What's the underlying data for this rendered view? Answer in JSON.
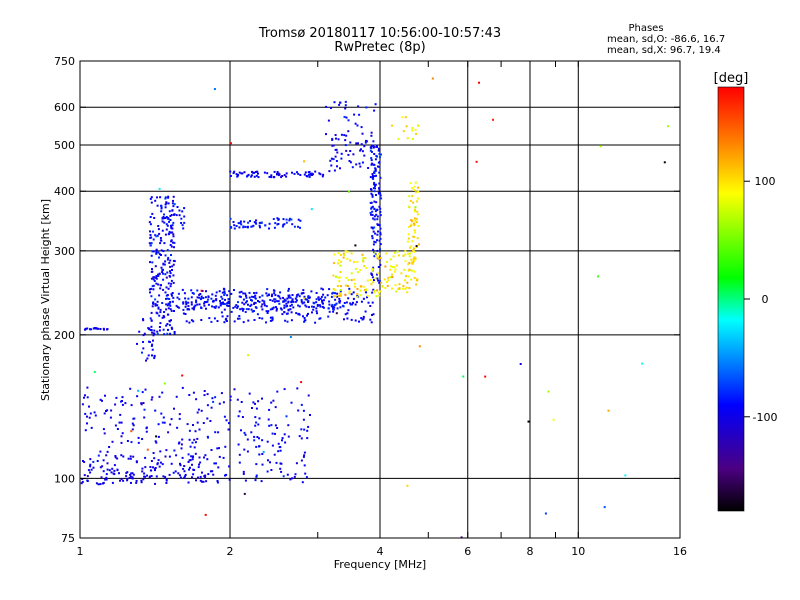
{
  "header": {
    "title_line1": "Tromsø 20180117 10:56:00-10:57:43",
    "title_line2": "RwPretec (8p)",
    "stats_title": "Phases",
    "stats_o": "mean, sd,O: -86.6, 16.7",
    "stats_x": "mean, sd,X:  96.7, 19.4"
  },
  "chart_data": {
    "type": "scatter",
    "xlabel": "Frequency [MHz]",
    "ylabel": "Stationary phase Virtual Height [km]",
    "xscale": "log",
    "yscale": "log",
    "xlim": [
      1,
      16
    ],
    "ylim": [
      75,
      750
    ],
    "x_ticks": [
      1,
      2,
      4,
      6,
      8,
      10,
      16
    ],
    "x_ticklabels": [
      "1",
      "2",
      "4",
      "6",
      "8",
      "10",
      "16"
    ],
    "x_minor_ticks": [
      3,
      5,
      7,
      9
    ],
    "x_gridlines": [
      2,
      4,
      6,
      8,
      10
    ],
    "y_ticks": [
      75,
      100,
      200,
      300,
      400,
      500,
      600,
      750
    ],
    "y_ticklabels": [
      "75",
      "100",
      "200",
      "300",
      "400",
      "500",
      "600",
      "750"
    ],
    "y_gridlines": [
      100,
      200,
      300,
      400,
      500,
      600
    ],
    "colorbar": {
      "label": "[deg]",
      "range": [
        -180,
        180
      ],
      "ticks": [
        100,
        0,
        -100
      ],
      "ticklabels": [
        "100",
        "0",
        "-100"
      ],
      "colors": [
        "#000000",
        "#4b0082",
        "#0000ff",
        "#00ffff",
        "#00ff00",
        "#ffff00",
        "#ff8000",
        "#ff0000"
      ]
    },
    "series": [
      {
        "trace": "o_low_sporadic",
        "phase": -95,
        "scatter": 8,
        "x_range": [
          1.0,
          2.9
        ],
        "y_range": [
          98,
          155
        ],
        "count": 320
      },
      {
        "trace": "o_low_floor",
        "phase": -100,
        "scatter": 5,
        "x_range": [
          1.0,
          1.9
        ],
        "y_range": [
          97,
          112
        ],
        "count": 120
      },
      {
        "trace": "o_horizontal_205",
        "phase": -95,
        "scatter": 5,
        "x_range": [
          1.02,
          1.14
        ],
        "y_range": [
          205,
          207
        ],
        "count": 18
      },
      {
        "trace": "o_rise_low",
        "phase": -95,
        "scatter": 8,
        "x_range": [
          1.3,
          1.42
        ],
        "y_range": [
          175,
          220
        ],
        "count": 30
      },
      {
        "trace": "o_vertical_band",
        "phase": -95,
        "scatter": 10,
        "x_range": [
          1.38,
          1.55
        ],
        "y_range": [
          200,
          390
        ],
        "count": 220
      },
      {
        "trace": "o_F_main",
        "phase": -92,
        "scatter": 6,
        "x_range": [
          1.6,
          3.97
        ],
        "y_range": [
          212,
          250
        ],
        "count": 260
      },
      {
        "trace": "o_F_upper",
        "phase": -90,
        "scatter": 8,
        "x_range": [
          1.5,
          3.3
        ],
        "y_range": [
          225,
          245
        ],
        "count": 180
      },
      {
        "trace": "o_F_cusp",
        "phase": -90,
        "scatter": 8,
        "x_range": [
          3.83,
          4.02
        ],
        "y_range": [
          250,
          500
        ],
        "count": 140
      },
      {
        "trace": "o_high_370",
        "phase": -90,
        "scatter": 6,
        "x_range": [
          1.45,
          1.62
        ],
        "y_range": [
          330,
          380
        ],
        "count": 40
      },
      {
        "trace": "o_high_340",
        "phase": -85,
        "scatter": 6,
        "x_range": [
          2.0,
          2.8
        ],
        "y_range": [
          333,
          352
        ],
        "count": 60
      },
      {
        "trace": "o_high_430",
        "phase": -95,
        "scatter": 6,
        "x_range": [
          2.0,
          3.1
        ],
        "y_range": [
          428,
          440
        ],
        "count": 70
      },
      {
        "trace": "o_multi_hop",
        "phase": -95,
        "scatter": 8,
        "x_range": [
          3.1,
          3.92
        ],
        "y_range": [
          440,
          620
        ],
        "count": 80
      },
      {
        "trace": "x_F_main",
        "phase": 96,
        "scatter": 15,
        "x_range": [
          3.2,
          4.7
        ],
        "y_range": [
          240,
          300
        ],
        "count": 150
      },
      {
        "trace": "x_F_cusp",
        "phase": 97,
        "scatter": 12,
        "x_range": [
          4.55,
          4.8
        ],
        "y_range": [
          250,
          420
        ],
        "count": 70
      },
      {
        "trace": "x_multi_hop",
        "phase": 95,
        "scatter": 15,
        "x_range": [
          4.2,
          4.8
        ],
        "y_range": [
          510,
          580
        ],
        "count": 14
      },
      {
        "trace": "noise",
        "phase": 0,
        "scatter": 150,
        "x_range": [
          1.0,
          16.0
        ],
        "y_range": [
          75,
          750
        ],
        "count": 50
      }
    ]
  }
}
